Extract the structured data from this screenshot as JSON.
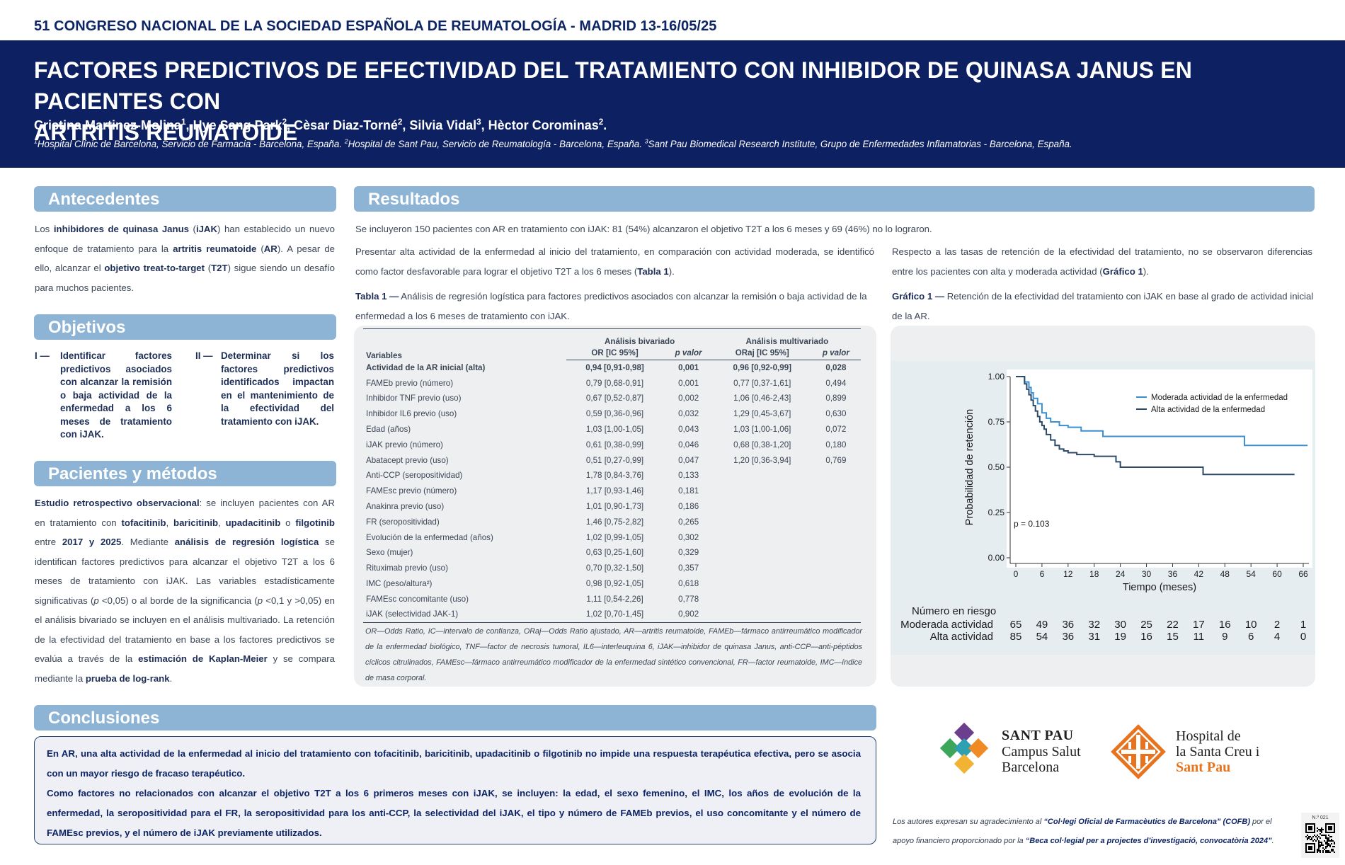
{
  "congress": "51 CONGRESO NACIONAL DE LA SOCIEDAD ESPAÑOLA DE REUMATOLOGÍA  -  MADRID 13-16/05/25",
  "title_line1": "FACTORES PREDICTIVOS DE EFECTIVIDAD DEL TRATAMIENTO CON INHIBIDOR DE QUINASA JANUS EN PACIENTES CON",
  "title_line2": "ARTRITIS REUMATOIDE",
  "authors": [
    {
      "name": "Cristina Martinez-Molina",
      "sup": "1",
      "sep": ", "
    },
    {
      "name": "Hye Sang Park",
      "sup": "2",
      "sep": ", "
    },
    {
      "name": "Cèsar Diaz-Torné",
      "sup": "2",
      "sep": ", "
    },
    {
      "name": "Silvia Vidal",
      "sup": "3",
      "sep": ", "
    },
    {
      "name": "Hèctor Corominas",
      "sup": "2",
      "sep": "."
    }
  ],
  "affiliations": [
    {
      "sup": "1",
      "text": "Hospital Clínic de Barcelona, Servicio de Farmacia - Barcelona, España. "
    },
    {
      "sup": "2",
      "text": "Hospital de Sant Pau, Servicio de Reumatología - Barcelona, España. "
    },
    {
      "sup": "3",
      "text": "Sant Pau Biomedical Research Institute, Grupo de Enfermedades Inflamatorias - Barcelona, España."
    }
  ],
  "sections": {
    "antecedentes": "Antecedentes",
    "objetivos": "Objetivos",
    "pacientes": "Pacientes y métodos",
    "resultados": "Resultados",
    "conclusiones": "Conclusiones"
  },
  "antecedentes_text": {
    "t1": "Los ",
    "b1": "inhibidores de quinasa Janus",
    "t2": " (",
    "b2": "iJAK",
    "t3": ") han establecido un nuevo enfoque de tratamiento para la ",
    "b3": "artritis reumatoide",
    "t4": " (",
    "b4": "AR",
    "t5": "). A pesar de ello, alcanzar el ",
    "b5": "objetivo treat-to-target",
    "t6": " (",
    "b6": "T2T",
    "t7": ") sigue siendo un desafío para muchos pacientes."
  },
  "objetivos": [
    {
      "num": "I —",
      "text": "Identificar factores predictivos asociados con alcanzar la remisión o baja actividad de la enfermedad a los 6 meses de tratamiento con iJAK."
    },
    {
      "num": "II —",
      "text": "Determinar si los factores predictivos identificados impactan en el mantenimiento de la efectividad del tratamiento con iJAK."
    }
  ],
  "metodos_text": {
    "b1": "Estudio retrospectivo observacional",
    "t1": ": se incluyen pacientes con AR en tratamiento con ",
    "b2": "tofacitinib",
    "t2": ", ",
    "b3": "baricitinib",
    "t3": ", ",
    "b4": "upadacitinib",
    "t4": " o ",
    "b5": "filgotinib",
    "t5": " entre ",
    "b6": "2017 y 2025",
    "t6": ". Mediante ",
    "b7": "análisis de regresión logística",
    "t7": " se identifican factores predictivos para alcanzar el objetivo T2T a los 6 meses de tratamiento con iJAK. Las variables estadísticamente significativas (",
    "i1": "p",
    "t8": " <0,05) o al borde de la significancia (",
    "i2": "p",
    "t9": " <0,1 y >0,05) en el análisis bivariado se incluyen en el análisis multivariado. La retención de la efectividad del tratamiento en base a los factores predictivos se evalúa a través de la ",
    "b8": "estimación de Kaplan-Meier",
    "t10": " y se compara mediante la ",
    "b9": "prueba de log-rank",
    "t11": "."
  },
  "resultados_intro": "Se incluyeron 150 pacientes con AR en tratamiento con iJAK: 81 (54%) alcanzaron el objetivo T2T a los 6 meses y 69 (46%) no lo lograron.",
  "resultados_left": {
    "t1": "Presentar alta actividad de la enfermedad al inicio del tratamiento, en comparación con actividad moderada, se identificó como factor desfavorable para lograr el objetivo T2T a los 6 meses (",
    "b1": "Tabla 1",
    "t2": ")."
  },
  "resultados_right": {
    "t1": "Respecto a las tasas de retención de la efectividad del tratamiento, no se observaron diferencias entre los pacientes con alta y moderada actividad (",
    "b1": "Gráfico 1",
    "t2": ")."
  },
  "tabla_caption": {
    "b": "Tabla 1 —",
    "t": " Análisis de regresión logística para factores predictivos asociados con alcanzar la remisión o baja actividad de la enfermedad a los 6 meses de tratamiento con iJAK."
  },
  "grafico_caption": {
    "b": "Gráfico 1 —",
    "t": " Retención de la efectividad del tratamiento con iJAK en base al grado de actividad inicial de la AR."
  },
  "table": {
    "col_variables": "Variables",
    "group_biv": "Análisis bivariado",
    "group_multi": "Análisis multivariado",
    "col_or": "OR [IC 95%]",
    "col_p": "p valor",
    "col_oraj": "ORaj [IC 95%]",
    "col_p2": "p valor",
    "rows": [
      {
        "var": "Actividad de la AR inicial (alta)",
        "or": "0,94 [0,91-0,98]",
        "p": "0,001",
        "oraj": "0,96 [0,92-0,99]",
        "p2": "0,028",
        "bold": true
      },
      {
        "var": "FAMEb previo (número)",
        "or": "0,79 [0,68-0,91]",
        "p": "0,001",
        "oraj": "0,77 [0,37-1,61]",
        "p2": "0,494"
      },
      {
        "var": "Inhibidor TNF previo (uso)",
        "or": "0,67 [0,52-0,87]",
        "p": "0,002",
        "oraj": "1,06 [0,46-2,43]",
        "p2": "0,899"
      },
      {
        "var": "Inhibidor IL6 previo (uso)",
        "or": "0,59 [0,36-0,96]",
        "p": "0,032",
        "oraj": "1,29 [0,45-3,67]",
        "p2": "0,630"
      },
      {
        "var": "Edad (años)",
        "or": "1,03 [1,00-1,05]",
        "p": "0,043",
        "oraj": "1,03 [1,00-1,06]",
        "p2": "0,072"
      },
      {
        "var": "iJAK previo (número)",
        "or": "0,61 [0,38-0,99]",
        "p": "0,046",
        "oraj": "0,68 [0,38-1,20]",
        "p2": "0,180"
      },
      {
        "var": "Abatacept previo (uso)",
        "or": "0,51 [0,27-0,99]",
        "p": "0,047",
        "oraj": "1,20 [0,36-3,94]",
        "p2": "0,769"
      },
      {
        "var": "Anti-CCP (seropositividad)",
        "or": "1,78 [0,84-3,76]",
        "p": "0,133",
        "oraj": "",
        "p2": ""
      },
      {
        "var": "FAMEsc previo (número)",
        "or": "1,17 [0,93-1,46]",
        "p": "0,181",
        "oraj": "",
        "p2": ""
      },
      {
        "var": "Anakinra previo (uso)",
        "or": "1,01 [0,90-1,73]",
        "p": "0,186",
        "oraj": "",
        "p2": ""
      },
      {
        "var": "FR (seropositividad)",
        "or": "1,46 [0,75-2,82]",
        "p": "0,265",
        "oraj": "",
        "p2": ""
      },
      {
        "var": "Evolución de la enfermedad (años)",
        "or": "1,02 [0,99-1,05]",
        "p": "0,302",
        "oraj": "",
        "p2": ""
      },
      {
        "var": "Sexo (mujer)",
        "or": "0,63 [0,25-1,60]",
        "p": "0,329",
        "oraj": "",
        "p2": ""
      },
      {
        "var": "Rituximab previo (uso)",
        "or": "0,70 [0,32-1,50]",
        "p": "0,357",
        "oraj": "",
        "p2": ""
      },
      {
        "var": "IMC (peso/altura²)",
        "or": "0,98 [0,92-1,05]",
        "p": "0,618",
        "oraj": "",
        "p2": ""
      },
      {
        "var": "FAMEsc concomitante (uso)",
        "or": "1,11 [0,54-2,26]",
        "p": "0,778",
        "oraj": "",
        "p2": ""
      },
      {
        "var": "iJAK (selectividad JAK-1)",
        "or": "1,02 [0,70-1,45]",
        "p": "0,902",
        "oraj": "",
        "p2": ""
      }
    ],
    "note": "OR—Odds Ratio, IC—intervalo de confianza, ORaj—Odds Ratio ajustado, AR—artritis reumatoide, FAMEb—fármaco antirreumático modificador de la enfermedad biológico, TNF—factor de necrosis tumoral, IL6—interleuquina 6, iJAK—inhibidor de quinasa Janus, anti-CCP—anti-péptidos cíclicos citrulinados, FAMEsc—fármaco antirreumático modificador de la enfermedad sintético convencional, FR—factor reumatoide, IMC—índice de masa corporal."
  },
  "chart_data": {
    "type": "line",
    "xlabel": "Tiempo (meses)",
    "ylabel": "Probabilidad de retención",
    "xlim": [
      0,
      66
    ],
    "ylim": [
      0,
      1
    ],
    "xticks": [
      "0",
      "6",
      "12",
      "18",
      "24",
      "30",
      "36",
      "42",
      "48",
      "54",
      "60",
      "66"
    ],
    "yticks": [
      "0.00",
      "0.25",
      "0.50",
      "0.75",
      "1.00"
    ],
    "grid": false,
    "legend": "top-right",
    "annotation": "p = 0.103",
    "series": [
      {
        "name": "Moderada actividad de la enfermedad",
        "color": "#3a8fd0",
        "x": [
          0,
          1.5,
          2,
          3,
          3.5,
          4,
          5,
          6,
          7,
          8,
          10,
          12,
          15,
          20,
          52,
          52.5,
          67
        ],
        "y": [
          1.0,
          1.0,
          0.97,
          0.94,
          0.91,
          0.88,
          0.85,
          0.8,
          0.77,
          0.75,
          0.73,
          0.72,
          0.7,
          0.67,
          0.67,
          0.62,
          0.62
        ]
      },
      {
        "name": "Alta actividad de la enfermedad",
        "color": "#2c4a68",
        "x": [
          0,
          1,
          2,
          2.5,
          3,
          3.5,
          4,
          4.5,
          5,
          5.5,
          6,
          6.5,
          7,
          8,
          9,
          10,
          11,
          12,
          14,
          17,
          18,
          23,
          24,
          42,
          43,
          64
        ],
        "y": [
          1.0,
          1.0,
          0.96,
          0.93,
          0.9,
          0.87,
          0.84,
          0.81,
          0.78,
          0.75,
          0.73,
          0.71,
          0.68,
          0.65,
          0.62,
          0.6,
          0.59,
          0.58,
          0.57,
          0.57,
          0.56,
          0.53,
          0.5,
          0.5,
          0.46,
          0.46
        ]
      }
    ],
    "risk_title": "Número en riesgo",
    "risk_rows": [
      {
        "label": "Moderada actividad",
        "values": [
          "65",
          "49",
          "36",
          "32",
          "30",
          "25",
          "22",
          "17",
          "16",
          "10",
          "2",
          "1"
        ]
      },
      {
        "label": "Alta actividad",
        "values": [
          "85",
          "54",
          "36",
          "31",
          "19",
          "16",
          "15",
          "11",
          "9",
          "6",
          "4",
          "0"
        ]
      }
    ]
  },
  "conclusiones": [
    "En AR, una alta actividad de la enfermedad al inicio del tratamiento con tofacitinib, baricitinib, upadacitinib o filgotinib no impide una respuesta terapéutica efectiva, pero se asocia con un mayor riesgo de fracaso terapéutico.",
    "Como factores no relacionados con alcanzar el objetivo T2T a los 6 primeros meses con iJAK, se incluyen: la edad, el sexo femenino, el IMC, los años de evolución de la enfermedad, la seropositividad para el FR, la seropositividad para los anti-CCP, la selectividad del iJAK, el tipo y número de FAMEb previos, el uso concomitante y el número de FAMEsc previos, y el número de iJAK previamente utilizados."
  ],
  "logos": {
    "santpau": [
      "SANT PAU",
      "Campus Salut",
      "Barcelona"
    ],
    "hospital": [
      "Hospital de",
      "la Santa Creu i",
      "Sant Pau"
    ],
    "colors": {
      "purple": "#6b3e8e",
      "green": "#3ea65b",
      "teal": "#2f9fb2",
      "orange": "#f08a24",
      "yellow": "#f2b233",
      "hospital_orange": "#e8731e"
    }
  },
  "ack": {
    "t1": "Los autores expresan su agradecimiento al ",
    "b1": "“Col·legi Oficial de Farmacèutics de Barcelona” (COFB)",
    "t2": " por el apoyo financiero proporcionado por la ",
    "b2": "“Beca col·legial per a projectes d’investigació, convocatòria 2024”",
    "t3": "."
  },
  "qr_label": "N.º 021"
}
